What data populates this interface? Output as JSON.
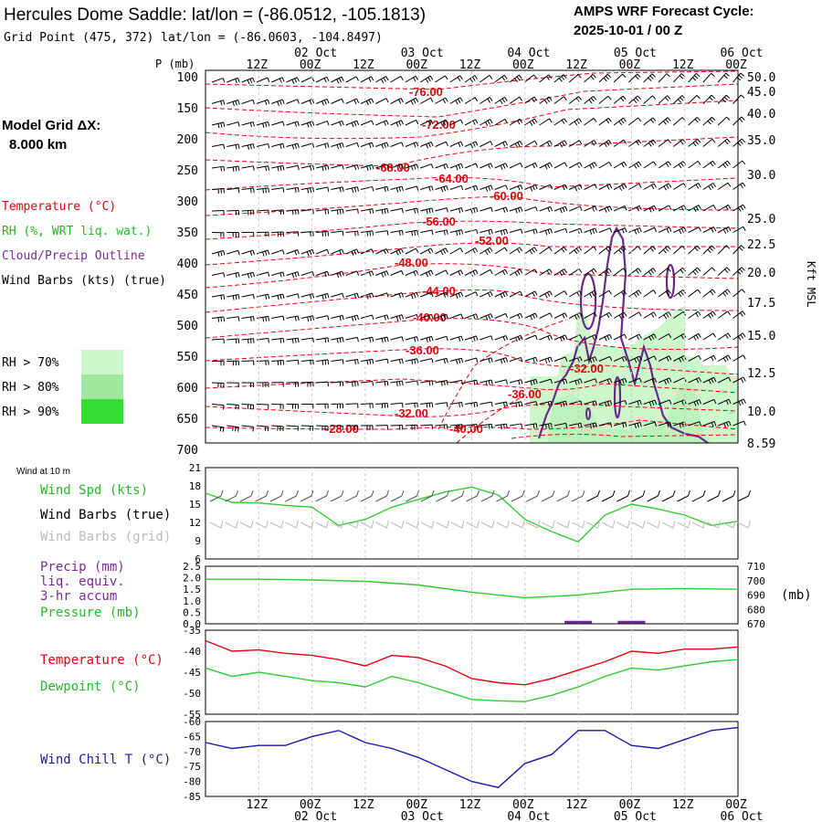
{
  "header": {
    "title": "Hercules Dome Saddle:  lat/lon = (-86.0512, -105.1813)",
    "subtitle": "Grid Point (475, 372) lat/lon = (-86.0603, -104.8497)",
    "cycle_label": "AMPS WRF Forecast Cycle:",
    "cycle_value": "2025-10-01 / 00  Z"
  },
  "model_grid": {
    "label": "Model Grid ΔX:",
    "value": "8.000 km"
  },
  "legend": {
    "temperature": "Temperature (°C)",
    "rh": "RH (%, WRT liq. wat.)",
    "cloud": "Cloud/Precip Outline",
    "wind_barbs": "Wind Barbs (kts) (true)",
    "rh_70": "RH > 70%",
    "rh_80": "RH > 80%",
    "rh_90": "RH > 90%"
  },
  "colors": {
    "temperature": "#e8000b",
    "rh70": "#ccf8cc",
    "rh80": "#a0e8a0",
    "rh90": "#33dd33",
    "cloud": "#6a2a8a",
    "wind": "#33cc33",
    "pressure": "#33cc33",
    "dewpoint": "#33cc33",
    "windchill": "#1a1aaa",
    "grid": "#c8c8c8"
  },
  "time_axis": {
    "hour_labels": [
      "12Z",
      "00Z",
      "12Z",
      "00Z",
      "12Z",
      "00Z",
      "12Z",
      "00Z",
      "12Z",
      "00Z"
    ],
    "date_labels": [
      "02 Oct",
      "03 Oct",
      "04 Oct",
      "05 Oct",
      "06 Oct"
    ]
  },
  "chart_data": [
    {
      "type": "contour",
      "name": "vertical-cross-section",
      "ylabel_left": "P (mb)",
      "ylabel_right": "Kft MSL",
      "pressure_ticks": [
        "100",
        "150",
        "200",
        "250",
        "300",
        "350",
        "400",
        "450",
        "500",
        "550",
        "600",
        "650",
        "700"
      ],
      "height_ticks": [
        "50.0",
        "45.0",
        "40.0",
        "35.0",
        "30.0",
        "25.0",
        "22.5",
        "20.0",
        "17.5",
        "15.0",
        "12.5",
        "10.0",
        "8.59"
      ],
      "temperature_labels": [
        "-76.00",
        "-72.00",
        "-68.00",
        "-64.00",
        "-60.00",
        "-56.00",
        "-52.00",
        "-48.00",
        "-44.00",
        "-40.00",
        "-36.00",
        "-36.00",
        "-32.00",
        "-32.00",
        "-28.00",
        "-40.00"
      ]
    },
    {
      "type": "line",
      "name": "wind-10m",
      "title": "Wind at 10 m",
      "labels": {
        "spd": "Wind Spd (kts)",
        "barbs_true": "Wind Barbs (true)",
        "barbs_grid": "Wind Barbs (grid)"
      },
      "yticks": [
        "21",
        "18",
        "15",
        "12",
        "9",
        "6"
      ],
      "ylim": [
        6,
        21
      ],
      "x_hours": [
        0,
        6,
        12,
        18,
        24,
        30,
        36,
        42,
        48,
        54,
        60,
        66,
        72,
        78,
        84,
        90,
        96,
        102,
        108,
        114,
        120
      ],
      "wind_speed_kts": [
        16.8,
        15.3,
        15.2,
        14.8,
        14.5,
        11.5,
        12.5,
        14.5,
        15.8,
        17.0,
        17.8,
        16.5,
        12.5,
        10.5,
        8.8,
        13.2,
        15.0,
        14.2,
        13.2,
        11.5,
        12.2
      ]
    },
    {
      "type": "bar+line",
      "name": "precip-pressure",
      "labels": {
        "precip": "Precip (mm)",
        "liq": "liq. equiv.",
        "accum": "3-hr accum",
        "pressure": "Pressure (mb)",
        "mb": "(mb)"
      },
      "yticks_left": [
        "2.5",
        "2.0",
        "1.5",
        "1.0",
        "0.5",
        "0.0"
      ],
      "yticks_right": [
        "710",
        "700",
        "690",
        "680",
        "670"
      ],
      "x_hours": [
        0,
        12,
        24,
        36,
        48,
        60,
        72,
        84,
        96,
        108,
        120
      ],
      "pressure_mb": [
        701,
        701,
        700.5,
        699.5,
        697,
        692,
        688,
        690,
        694,
        694.5,
        694
      ],
      "precip_mm": [
        0,
        0,
        0,
        0,
        0,
        0,
        0,
        0.05,
        0.05,
        0,
        0
      ]
    },
    {
      "type": "line",
      "name": "temp-dewpoint",
      "labels": {
        "temperature": "Temperature (°C)",
        "dewpoint": "Dewpoint (°C)"
      },
      "yticks": [
        "-35",
        "-40",
        "-45",
        "-50",
        "-55"
      ],
      "ylim": [
        -55,
        -35
      ],
      "x_hours": [
        0,
        6,
        12,
        18,
        24,
        30,
        36,
        42,
        48,
        54,
        60,
        66,
        72,
        78,
        84,
        90,
        96,
        102,
        108,
        114,
        120
      ],
      "temperature_c": [
        -37.5,
        -40.0,
        -39.7,
        -40.5,
        -41.0,
        -42.0,
        -43.5,
        -41.0,
        -41.5,
        -43.5,
        -46.5,
        -47.5,
        -48.0,
        -46.5,
        -44.5,
        -42.5,
        -40.0,
        -40.5,
        -39.5,
        -39.5,
        -39.0
      ],
      "dewpoint_c": [
        -44.0,
        -46.0,
        -45.0,
        -46.0,
        -47.0,
        -47.5,
        -48.5,
        -46.0,
        -47.5,
        -49.5,
        -51.5,
        -51.8,
        -52.0,
        -50.5,
        -48.5,
        -46.0,
        -44.0,
        -44.5,
        -43.5,
        -42.5,
        -42.0
      ]
    },
    {
      "type": "line",
      "name": "wind-chill",
      "labels": {
        "windchill": "Wind Chill T (°C)"
      },
      "yticks": [
        "-60",
        "-65",
        "-70",
        "-75",
        "-80",
        "-85"
      ],
      "ylim": [
        -85,
        -60
      ],
      "x_hours": [
        0,
        6,
        12,
        18,
        24,
        30,
        36,
        42,
        48,
        54,
        60,
        66,
        72,
        78,
        84,
        90,
        96,
        102,
        108,
        114,
        120
      ],
      "windchill_c": [
        -67,
        -69,
        -68,
        -68,
        -65,
        -63,
        -67,
        -69,
        -72,
        -76,
        -80,
        -82,
        -74,
        -71,
        -63,
        -63,
        -68,
        -69,
        -66,
        -63,
        -62
      ]
    }
  ]
}
